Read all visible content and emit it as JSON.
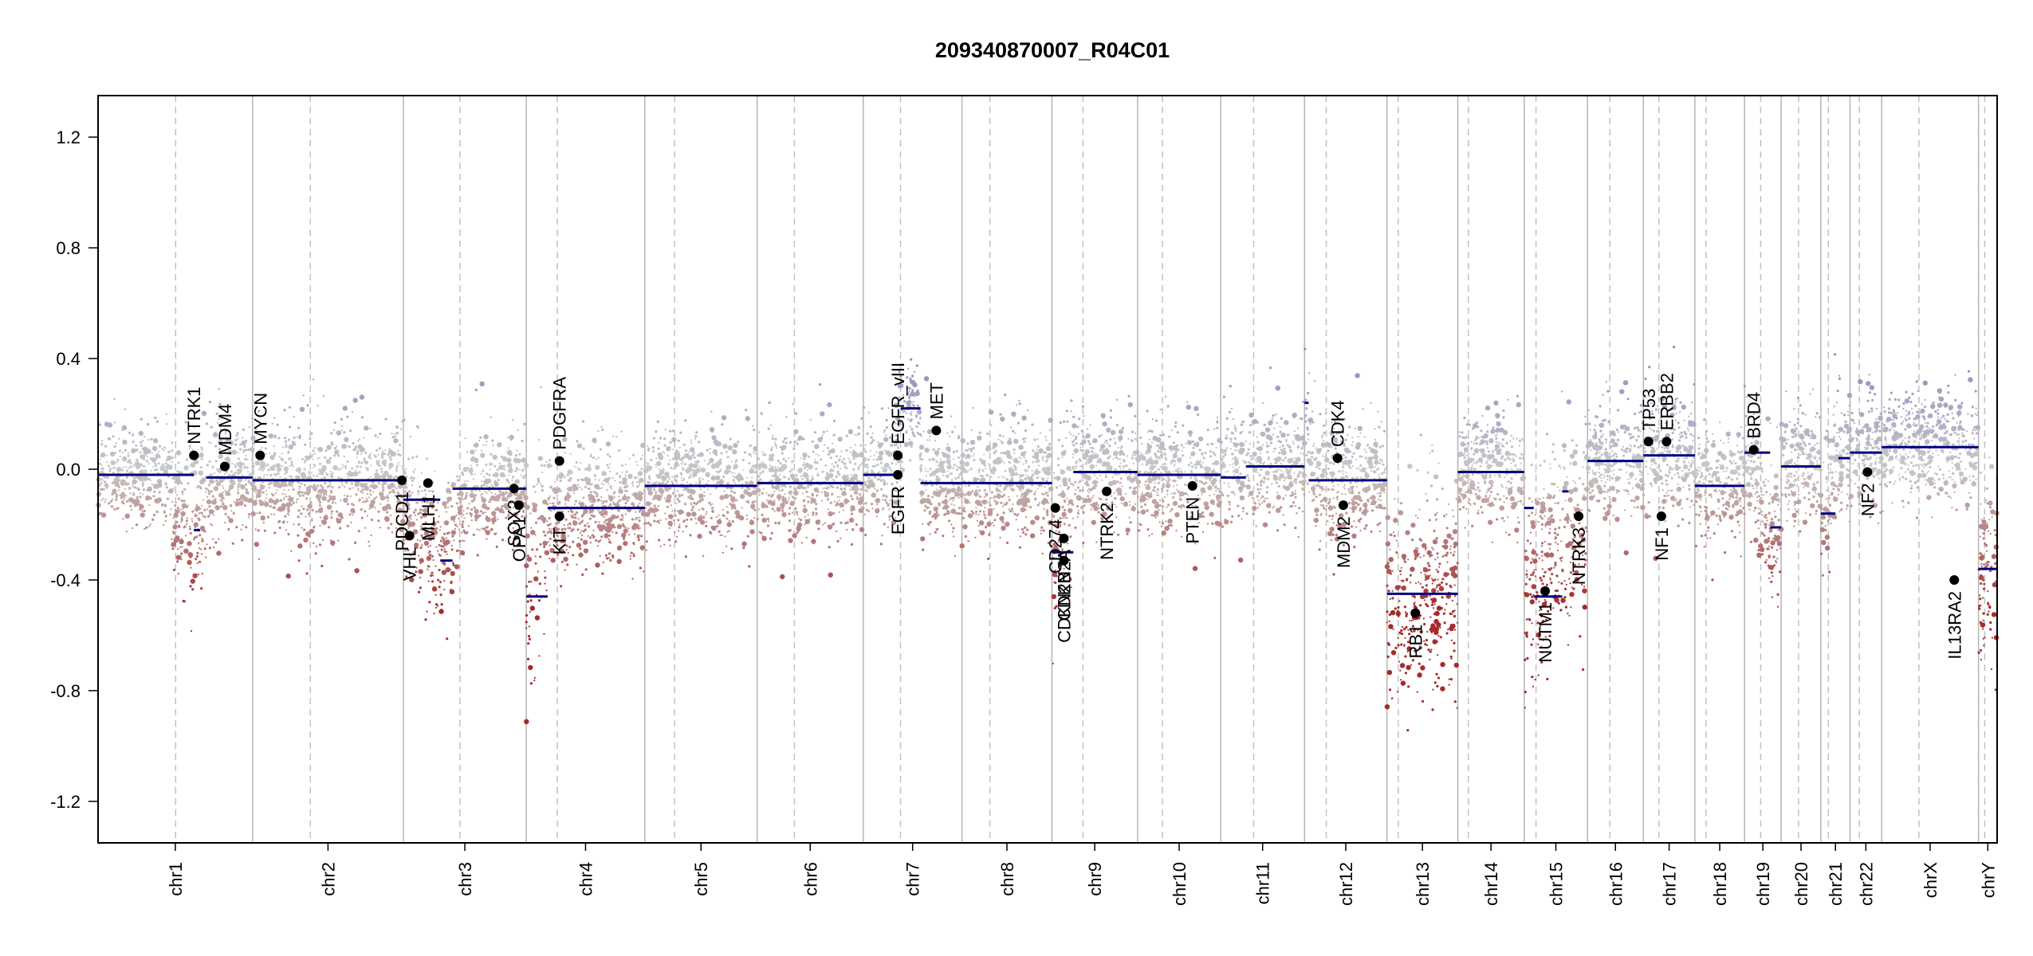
{
  "chart_data": {
    "type": "scatter",
    "title": "209340870007_R04C01",
    "xlabel": "",
    "ylabel": "",
    "ylim": [
      -1.35,
      1.35
    ],
    "yticks": [
      -1.2,
      -0.8,
      -0.4,
      0.0,
      0.4,
      0.8,
      1.2
    ],
    "ytick_labels": [
      "-1.2",
      "-0.8",
      "-0.4",
      "0.0",
      "0.4",
      "0.8",
      "1.2"
    ],
    "grid": false,
    "colors": {
      "gain": "#7f7fbf",
      "loss": "#a52a2a",
      "neutral": "#c8c8c8",
      "segment": "#000080",
      "gene_point": "#000000",
      "chr_line": "#b0b0b0"
    },
    "chromosomes": [
      {
        "label": "chr1",
        "len": 249,
        "cen": 125,
        "bins": [
          [
            0.0,
            -0.02,
            0.09
          ],
          [
            0.45,
            -0.03,
            0.1
          ],
          [
            0.55,
            -0.22,
            0.14
          ],
          [
            0.8,
            -0.03,
            0.09
          ],
          [
            1.0,
            -0.03,
            0.09
          ]
        ]
      },
      {
        "label": "chr2",
        "len": 243,
        "cen": 93,
        "bins": [
          [
            0.0,
            -0.04,
            0.1
          ],
          [
            0.3,
            -0.05,
            0.11
          ],
          [
            0.6,
            -0.03,
            0.1
          ],
          [
            1.0,
            -0.05,
            0.1
          ]
        ]
      },
      {
        "label": "chr3",
        "len": 198,
        "cen": 91,
        "bins": [
          [
            0.0,
            -0.11,
            0.12
          ],
          [
            0.3,
            -0.33,
            0.1
          ],
          [
            0.55,
            -0.07,
            0.1
          ],
          [
            1.0,
            -0.07,
            0.1
          ]
        ]
      },
      {
        "label": "chr4",
        "len": 191,
        "cen": 50,
        "bins": [
          [
            0.0,
            -0.46,
            0.2
          ],
          [
            0.18,
            -0.15,
            0.1
          ],
          [
            1.0,
            -0.14,
            0.1
          ]
        ]
      },
      {
        "label": "chr5",
        "len": 181,
        "cen": 48,
        "bins": [
          [
            0.0,
            -0.06,
            0.1
          ],
          [
            1.0,
            -0.06,
            0.1
          ]
        ]
      },
      {
        "label": "chr6",
        "len": 171,
        "cen": 60,
        "bins": [
          [
            0.0,
            -0.05,
            0.1
          ],
          [
            1.0,
            -0.05,
            0.1
          ]
        ]
      },
      {
        "label": "chr7",
        "len": 159,
        "cen": 60,
        "bins": [
          [
            0.0,
            -0.02,
            0.1
          ],
          [
            0.3,
            -0.02,
            0.1
          ],
          [
            0.4,
            0.22,
            0.08
          ],
          [
            0.55,
            0.22,
            0.08
          ],
          [
            0.6,
            -0.05,
            0.1
          ],
          [
            1.0,
            -0.06,
            0.1
          ]
        ]
      },
      {
        "label": "chr8",
        "len": 145,
        "cen": 45,
        "bins": [
          [
            0.0,
            -0.05,
            0.1
          ],
          [
            1.0,
            -0.05,
            0.1
          ]
        ]
      },
      {
        "label": "chr9",
        "len": 138,
        "cen": 50,
        "bins": [
          [
            0.0,
            -0.3,
            0.18
          ],
          [
            0.25,
            -0.01,
            0.1
          ],
          [
            1.0,
            -0.01,
            0.1
          ]
        ]
      },
      {
        "label": "chr10",
        "len": 134,
        "cen": 40,
        "bins": [
          [
            0.0,
            -0.02,
            0.1
          ],
          [
            1.0,
            -0.03,
            0.1
          ]
        ]
      },
      {
        "label": "chr11",
        "len": 135,
        "cen": 53,
        "bins": [
          [
            0.0,
            0.01,
            0.1
          ],
          [
            1.0,
            0.01,
            0.1
          ]
        ]
      },
      {
        "label": "chr12",
        "len": 133,
        "cen": 35,
        "bins": [
          [
            0.0,
            0.15,
            0.12
          ],
          [
            0.15,
            -0.04,
            0.1
          ],
          [
            1.0,
            -0.04,
            0.1
          ]
        ]
      },
      {
        "label": "chr13",
        "len": 114,
        "cen": 18,
        "bins": [
          [
            0.0,
            -0.45,
            0.18
          ],
          [
            1.0,
            -0.45,
            0.2
          ]
        ]
      },
      {
        "label": "chr14",
        "len": 107,
        "cen": 17,
        "bins": [
          [
            0.0,
            -0.01,
            0.1
          ],
          [
            1.0,
            -0.01,
            0.1
          ]
        ]
      },
      {
        "label": "chr15",
        "len": 102,
        "cen": 19,
        "bins": [
          [
            0.0,
            -0.45,
            0.18
          ],
          [
            0.6,
            -0.2,
            0.18
          ],
          [
            1.0,
            -0.2,
            0.15
          ]
        ]
      },
      {
        "label": "chr16",
        "len": 90,
        "cen": 36,
        "bins": [
          [
            0.0,
            0.03,
            0.1
          ],
          [
            1.0,
            0.03,
            0.1
          ]
        ]
      },
      {
        "label": "chr17",
        "len": 83,
        "cen": 25,
        "bins": [
          [
            0.0,
            0.05,
            0.11
          ],
          [
            1.0,
            0.05,
            0.11
          ]
        ]
      },
      {
        "label": "chr18",
        "len": 80,
        "cen": 18,
        "bins": [
          [
            0.0,
            -0.06,
            0.1
          ],
          [
            1.0,
            -0.06,
            0.1
          ]
        ]
      },
      {
        "label": "chr19",
        "len": 59,
        "cen": 26,
        "bins": [
          [
            0.0,
            0.06,
            0.1
          ],
          [
            0.7,
            -0.22,
            0.15
          ],
          [
            1.0,
            -0.22,
            0.15
          ]
        ]
      },
      {
        "label": "chr20",
        "len": 64,
        "cen": 28,
        "bins": [
          [
            0.0,
            0.01,
            0.1
          ],
          [
            1.0,
            0.01,
            0.1
          ]
        ]
      },
      {
        "label": "chr21",
        "len": 47,
        "cen": 12,
        "bins": [
          [
            0.0,
            -0.16,
            0.12
          ],
          [
            0.5,
            0.04,
            0.1
          ],
          [
            1.0,
            0.04,
            0.1
          ]
        ]
      },
      {
        "label": "chr22",
        "len": 51,
        "cen": 15,
        "bins": [
          [
            0.0,
            0.06,
            0.1
          ],
          [
            1.0,
            0.06,
            0.1
          ]
        ]
      },
      {
        "label": "chrX",
        "len": 156,
        "cen": 60,
        "bins": [
          [
            0.0,
            0.08,
            0.1
          ],
          [
            1.0,
            0.08,
            0.1
          ]
        ]
      },
      {
        "label": "chrY",
        "len": 30,
        "cen": 10,
        "bins": [
          [
            0.0,
            -0.36,
            0.15
          ],
          [
            1.0,
            -0.36,
            0.2
          ]
        ]
      }
    ],
    "segments": [
      {
        "chr": "chr1",
        "start": 0,
        "end": 0.62,
        "value": -0.02
      },
      {
        "chr": "chr1",
        "start": 0.62,
        "end": 0.66,
        "value": -0.22
      },
      {
        "chr": "chr1",
        "start": 0.7,
        "end": 1.0,
        "value": -0.03
      },
      {
        "chr": "chr2",
        "start": 0,
        "end": 1.0,
        "value": -0.04
      },
      {
        "chr": "chr3",
        "start": 0,
        "end": 0.3,
        "value": -0.11
      },
      {
        "chr": "chr3",
        "start": 0.3,
        "end": 0.4,
        "value": -0.33
      },
      {
        "chr": "chr3",
        "start": 0.4,
        "end": 0.41,
        "value": -0.34
      },
      {
        "chr": "chr3",
        "start": 0.4,
        "end": 1.0,
        "value": -0.07
      },
      {
        "chr": "chr4",
        "start": 0,
        "end": 0.18,
        "value": -0.46
      },
      {
        "chr": "chr4",
        "start": 0.18,
        "end": 1.0,
        "value": -0.14
      },
      {
        "chr": "chr5",
        "start": 0,
        "end": 1.0,
        "value": -0.06
      },
      {
        "chr": "chr6",
        "start": 0,
        "end": 1.0,
        "value": -0.05
      },
      {
        "chr": "chr7",
        "start": 0,
        "end": 0.38,
        "value": -0.02
      },
      {
        "chr": "chr7",
        "start": 0.38,
        "end": 0.58,
        "value": 0.22
      },
      {
        "chr": "chr7",
        "start": 0.58,
        "end": 1.0,
        "value": -0.05
      },
      {
        "chr": "chr8",
        "start": 0,
        "end": 1.0,
        "value": -0.05
      },
      {
        "chr": "chr9",
        "start": 0,
        "end": 0.25,
        "value": -0.3
      },
      {
        "chr": "chr9",
        "start": 0.25,
        "end": 1.0,
        "value": -0.01
      },
      {
        "chr": "chr10",
        "start": 0,
        "end": 1.0,
        "value": -0.02
      },
      {
        "chr": "chr11",
        "start": 0,
        "end": 0.3,
        "value": -0.03
      },
      {
        "chr": "chr11",
        "start": 0.3,
        "end": 1.0,
        "value": 0.01
      },
      {
        "chr": "chr12",
        "start": 0,
        "end": 0.05,
        "value": 0.24
      },
      {
        "chr": "chr12",
        "start": 0.05,
        "end": 1.0,
        "value": -0.04
      },
      {
        "chr": "chr13",
        "start": 0,
        "end": 1.0,
        "value": -0.45
      },
      {
        "chr": "chr14",
        "start": 0,
        "end": 1.0,
        "value": -0.01
      },
      {
        "chr": "chr15",
        "start": 0,
        "end": 0.15,
        "value": -0.14
      },
      {
        "chr": "chr15",
        "start": 0.15,
        "end": 0.6,
        "value": -0.46
      },
      {
        "chr": "chr15",
        "start": 0.6,
        "end": 0.7,
        "value": -0.08
      },
      {
        "chr": "chr16",
        "start": 0,
        "end": 1.0,
        "value": 0.03
      },
      {
        "chr": "chr17",
        "start": 0,
        "end": 1.0,
        "value": 0.05
      },
      {
        "chr": "chr18",
        "start": 0,
        "end": 1.0,
        "value": -0.06
      },
      {
        "chr": "chr19",
        "start": 0,
        "end": 0.7,
        "value": 0.06
      },
      {
        "chr": "chr19",
        "start": 0.7,
        "end": 1.0,
        "value": -0.21
      },
      {
        "chr": "chr20",
        "start": 0,
        "end": 1.0,
        "value": 0.01
      },
      {
        "chr": "chr21",
        "start": 0,
        "end": 0.5,
        "value": -0.16
      },
      {
        "chr": "chr21",
        "start": 0.6,
        "end": 1.0,
        "value": 0.04
      },
      {
        "chr": "chr22",
        "start": 0,
        "end": 1.0,
        "value": 0.06
      },
      {
        "chr": "chrX",
        "start": 0,
        "end": 1.0,
        "value": 0.08
      },
      {
        "chr": "chrY",
        "start": 0,
        "end": 1.0,
        "value": -0.36
      }
    ],
    "genes": [
      {
        "name": "NTRK1",
        "chr": "chr1",
        "pos": 0.62,
        "value": 0.05,
        "dir": "up"
      },
      {
        "name": "MDM4",
        "chr": "chr1",
        "pos": 0.82,
        "value": 0.01,
        "dir": "up"
      },
      {
        "name": "MYCN",
        "chr": "chr2",
        "pos": 0.05,
        "value": 0.05,
        "dir": "up"
      },
      {
        "name": "PDCD1",
        "chr": "chr2",
        "pos": 0.99,
        "value": -0.04,
        "dir": "down"
      },
      {
        "name": "VHL",
        "chr": "chr3",
        "pos": 0.05,
        "value": -0.24,
        "dir": "down"
      },
      {
        "name": "MLH1",
        "chr": "chr3",
        "pos": 0.2,
        "value": -0.05,
        "dir": "down"
      },
      {
        "name": "SOX2",
        "chr": "chr3",
        "pos": 0.9,
        "value": -0.07,
        "dir": "down"
      },
      {
        "name": "OPA1",
        "chr": "chr3",
        "pos": 0.94,
        "value": -0.13,
        "dir": "down"
      },
      {
        "name": "PDGFRA",
        "chr": "chr4",
        "pos": 0.28,
        "value": 0.03,
        "dir": "up"
      },
      {
        "name": "KIT",
        "chr": "chr4",
        "pos": 0.28,
        "value": -0.17,
        "dir": "down"
      },
      {
        "name": "EGFR_vIII",
        "chr": "chr7",
        "pos": 0.35,
        "value": 0.05,
        "dir": "up"
      },
      {
        "name": "EGFR",
        "chr": "chr7",
        "pos": 0.35,
        "value": -0.02,
        "dir": "down"
      },
      {
        "name": "MET",
        "chr": "chr7",
        "pos": 0.74,
        "value": 0.14,
        "dir": "up"
      },
      {
        "name": "CD274",
        "chr": "chr9",
        "pos": 0.04,
        "value": -0.14,
        "dir": "down"
      },
      {
        "name": "CDKN2A",
        "chr": "chr9",
        "pos": 0.14,
        "value": -0.25,
        "dir": "down"
      },
      {
        "name": "CDKN2B",
        "chr": "chr9",
        "pos": 0.14,
        "value": -0.33,
        "dir": "down"
      },
      {
        "name": "NTRK2",
        "chr": "chr9",
        "pos": 0.64,
        "value": -0.08,
        "dir": "down"
      },
      {
        "name": "PTEN",
        "chr": "chr10",
        "pos": 0.66,
        "value": -0.06,
        "dir": "down"
      },
      {
        "name": "CDK4",
        "chr": "chr12",
        "pos": 0.4,
        "value": 0.04,
        "dir": "up"
      },
      {
        "name": "MDM2",
        "chr": "chr12",
        "pos": 0.47,
        "value": -0.13,
        "dir": "down"
      },
      {
        "name": "RB1",
        "chr": "chr13",
        "pos": 0.4,
        "value": -0.52,
        "dir": "down"
      },
      {
        "name": "NUTM1",
        "chr": "chr15",
        "pos": 0.33,
        "value": -0.44,
        "dir": "down"
      },
      {
        "name": "NTRK3",
        "chr": "chr15",
        "pos": 0.86,
        "value": -0.17,
        "dir": "down"
      },
      {
        "name": "TP53",
        "chr": "chr17",
        "pos": 0.1,
        "value": 0.1,
        "dir": "up"
      },
      {
        "name": "ERBB2",
        "chr": "chr17",
        "pos": 0.45,
        "value": 0.1,
        "dir": "up"
      },
      {
        "name": "NF1",
        "chr": "chr17",
        "pos": 0.35,
        "value": -0.17,
        "dir": "down"
      },
      {
        "name": "BRD4",
        "chr": "chr19",
        "pos": 0.25,
        "value": 0.07,
        "dir": "up"
      },
      {
        "name": "NF2",
        "chr": "chr22",
        "pos": 0.55,
        "value": -0.01,
        "dir": "down"
      },
      {
        "name": "IL13RA2",
        "chr": "chrX",
        "pos": 0.75,
        "value": -0.4,
        "dir": "down"
      }
    ]
  }
}
